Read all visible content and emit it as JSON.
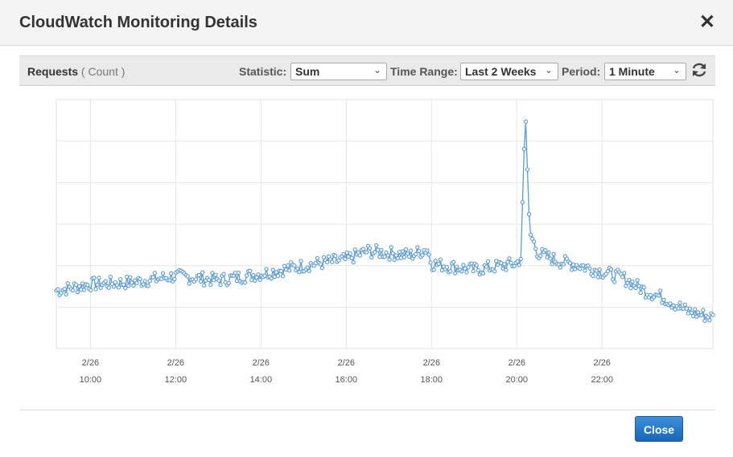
{
  "dialog": {
    "title": "CloudWatch Monitoring Details",
    "close_icon": "close-icon"
  },
  "toolbar": {
    "metric_name": "Requests",
    "metric_unit": "( Count )",
    "statistic_label": "Statistic:",
    "statistic_value": "Sum",
    "time_range_label": "Time Range:",
    "time_range_value": "Last 2 Weeks",
    "period_label": "Period:",
    "period_value": "1 Minute",
    "refresh_icon": "refresh-icon"
  },
  "footer": {
    "close_label": "Close"
  },
  "colors": {
    "series": "#5b9bd5",
    "accent": "#1a66b8"
  },
  "chart_data": {
    "type": "line",
    "title": "",
    "xlabel": "",
    "ylabel": "",
    "x_tick_labels": [
      {
        "date": "2/26",
        "time": "10:00"
      },
      {
        "date": "2/26",
        "time": "12:00"
      },
      {
        "date": "2/26",
        "time": "14:00"
      },
      {
        "date": "2/26",
        "time": "16:00"
      },
      {
        "date": "2/26",
        "time": "18:00"
      },
      {
        "date": "2/26",
        "time": "20:00"
      },
      {
        "date": "2/26",
        "time": "22:00"
      }
    ],
    "xlim_hours": [
      9.2,
      24.6
    ],
    "ylim": [
      0,
      6
    ],
    "grid": true,
    "series": [
      {
        "keypoints_hours": [
          9.2,
          10.0,
          11.0,
          12.0,
          13.0,
          14.0,
          15.0,
          16.0,
          16.5,
          17.0,
          17.5,
          17.9,
          18.0,
          19.0,
          20.0,
          20.1,
          20.2,
          20.3,
          20.5,
          21.0,
          21.5,
          22.0,
          22.5,
          23.0,
          23.5,
          24.0,
          24.6
        ],
        "keypoints_values": [
          1.4,
          1.55,
          1.6,
          1.75,
          1.65,
          1.8,
          2.0,
          2.15,
          2.35,
          2.3,
          2.25,
          2.4,
          2.05,
          1.9,
          2.05,
          2.2,
          5.8,
          2.8,
          2.3,
          2.1,
          2.0,
          1.85,
          1.7,
          1.4,
          1.2,
          0.9,
          0.75
        ]
      }
    ]
  }
}
